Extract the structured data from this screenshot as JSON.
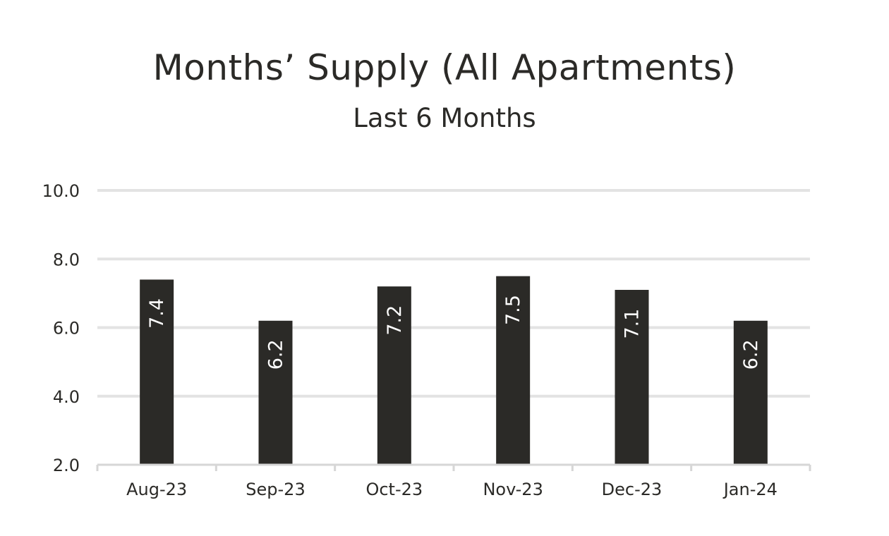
{
  "chart_data": {
    "type": "bar",
    "title": "Months’ Supply (All Apartments)",
    "subtitle": "Last 6 Months",
    "xlabel": "",
    "ylabel": "",
    "categories": [
      "Aug-23",
      "Sep-23",
      "Oct-23",
      "Nov-23",
      "Dec-23",
      "Jan-24"
    ],
    "values": [
      7.4,
      6.2,
      7.2,
      7.5,
      7.1,
      6.2
    ],
    "data_labels": [
      "7.4",
      "6.2",
      "7.2",
      "7.5",
      "7.1",
      "6.2"
    ],
    "ylim": [
      2.0,
      10.0
    ],
    "yticks": [
      "2.0",
      "4.0",
      "6.0",
      "8.0",
      "10.0"
    ],
    "grid": true,
    "legend": "none",
    "colors": {
      "bar": "#2b2a27",
      "grid": "#e3e3e3",
      "axis": "#d6d6d6",
      "text": "#2b2a27",
      "bar_label": "#ffffff"
    }
  }
}
